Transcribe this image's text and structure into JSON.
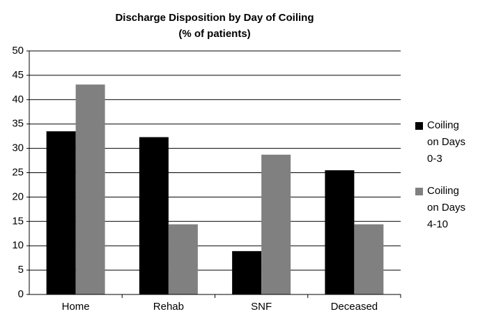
{
  "chart_data": {
    "type": "bar",
    "title": "Discharge Disposition by Day of Coiling",
    "subtitle": "(% of patients)",
    "categories": [
      "Home",
      "Rehab",
      "SNF",
      "Deceased"
    ],
    "series": [
      {
        "name": "Coiling on Days 0-3",
        "color": "#000000",
        "values": [
          33.5,
          32.3,
          8.9,
          25.5
        ]
      },
      {
        "name": "Coiling on Days 4-10",
        "color": "#808080",
        "values": [
          43.1,
          14.4,
          28.7,
          14.4
        ]
      }
    ],
    "ylim": [
      0,
      50
    ],
    "yticks": [
      0,
      5,
      10,
      15,
      20,
      25,
      30,
      35,
      40,
      45,
      50
    ],
    "grid": true,
    "legend": "right"
  }
}
